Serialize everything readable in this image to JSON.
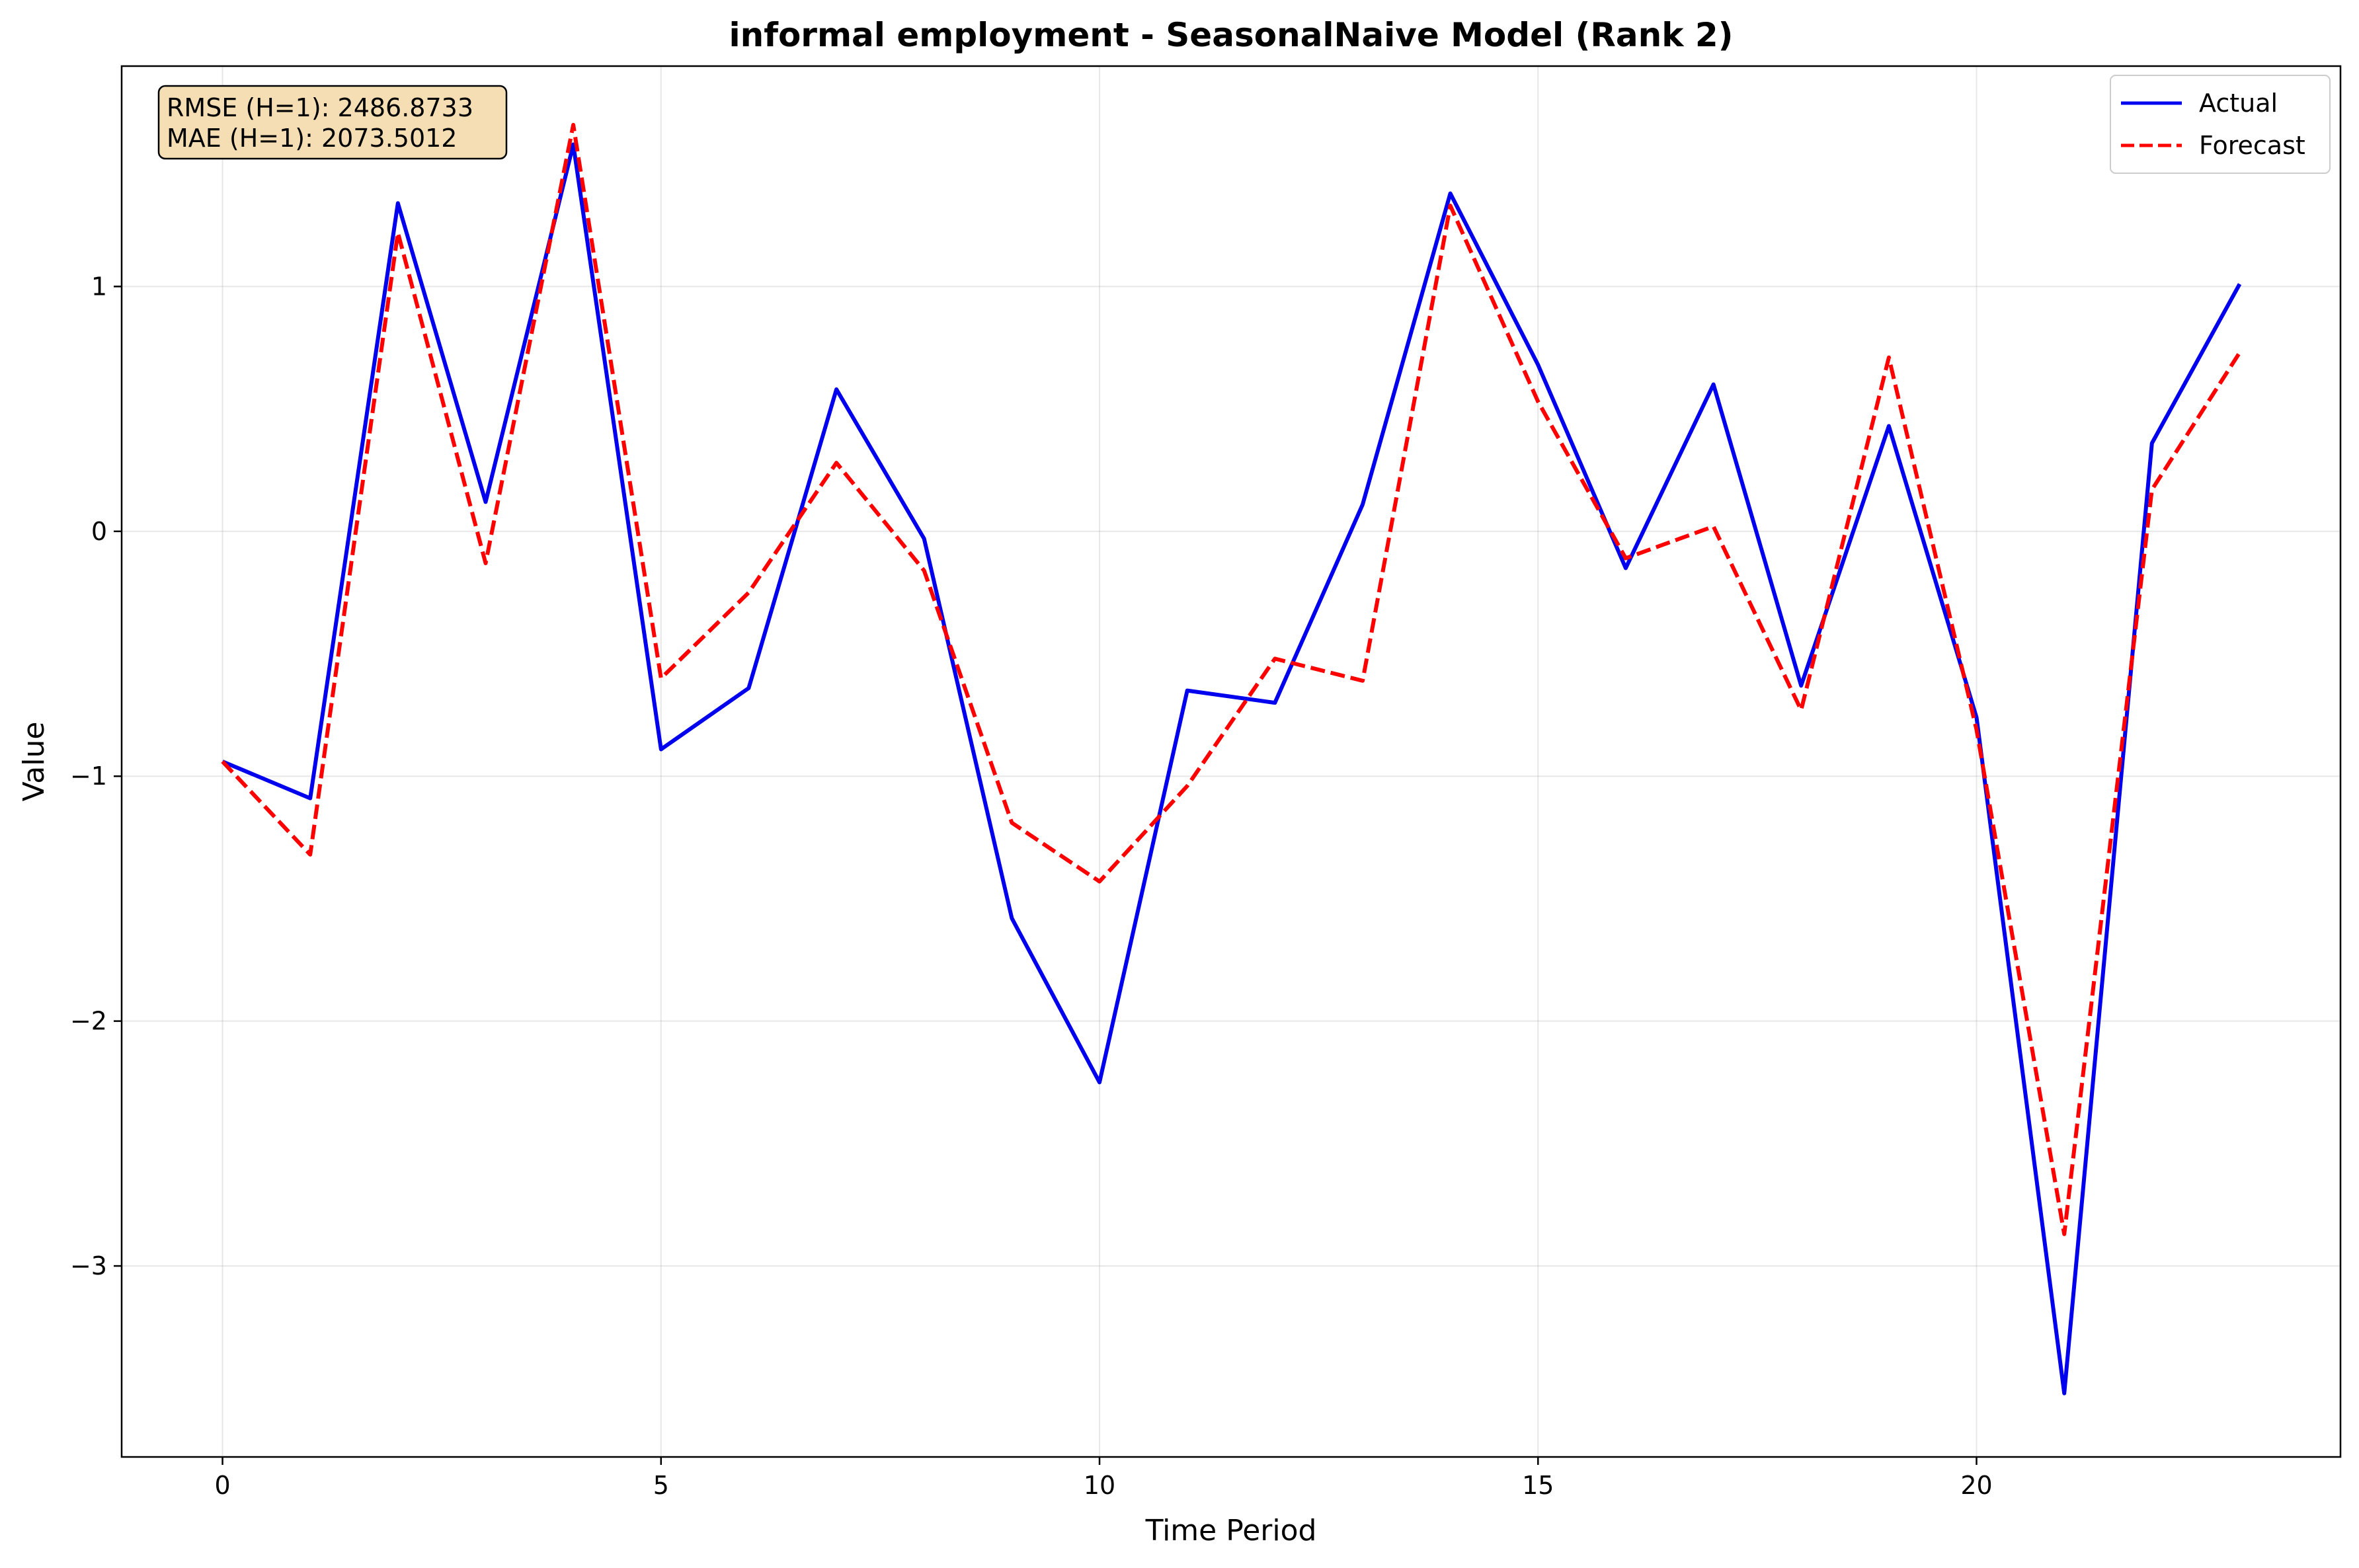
{
  "chart_data": {
    "type": "line",
    "title": "informal employment - SeasonalNaive Model (Rank 2)",
    "xlabel": "Time Period",
    "ylabel": "Value",
    "xlim": [
      -1.15,
      24.15
    ],
    "ylim": [
      -3.78,
      1.9
    ],
    "xticks": [
      0,
      5,
      10,
      15,
      20
    ],
    "yticks": [
      -3,
      -2,
      -1,
      0,
      1
    ],
    "xtick_labels": [
      "0",
      "5",
      "10",
      "15",
      "20"
    ],
    "ytick_labels": [
      "−3",
      "−2",
      "−1",
      "0",
      "1"
    ],
    "grid": true,
    "legend_position": "top-right",
    "annotation": {
      "lines": [
        "RMSE (H=1): 2486.8733",
        "MAE (H=1): 2073.5012"
      ],
      "position": "top-left",
      "background": "#f5deb3"
    },
    "x": [
      0,
      1,
      2,
      3,
      4,
      5,
      6,
      7,
      8,
      9,
      10,
      11,
      12,
      13,
      14,
      15,
      16,
      17,
      18,
      19,
      20,
      21,
      22,
      23
    ],
    "series": [
      {
        "name": "Actual",
        "color": "#0000ee",
        "dash": "solid",
        "values": [
          -0.94,
          -1.09,
          1.34,
          0.12,
          1.58,
          -0.89,
          -0.64,
          0.58,
          -0.03,
          -1.58,
          -2.25,
          -0.65,
          -0.7,
          0.11,
          1.38,
          0.68,
          -0.15,
          0.6,
          -0.63,
          0.43,
          -0.76,
          -3.52,
          0.36,
          1.01
        ]
      },
      {
        "name": "Forecast",
        "color": "#ff0000",
        "dash": "dashed",
        "values": [
          -0.94,
          -1.32,
          1.22,
          -0.13,
          1.66,
          -0.6,
          -0.25,
          0.28,
          -0.16,
          -1.19,
          -1.43,
          -1.04,
          -0.52,
          -0.61,
          1.33,
          0.53,
          -0.11,
          0.02,
          -0.73,
          0.71,
          -0.81,
          -2.87,
          0.17,
          0.73
        ]
      }
    ]
  }
}
